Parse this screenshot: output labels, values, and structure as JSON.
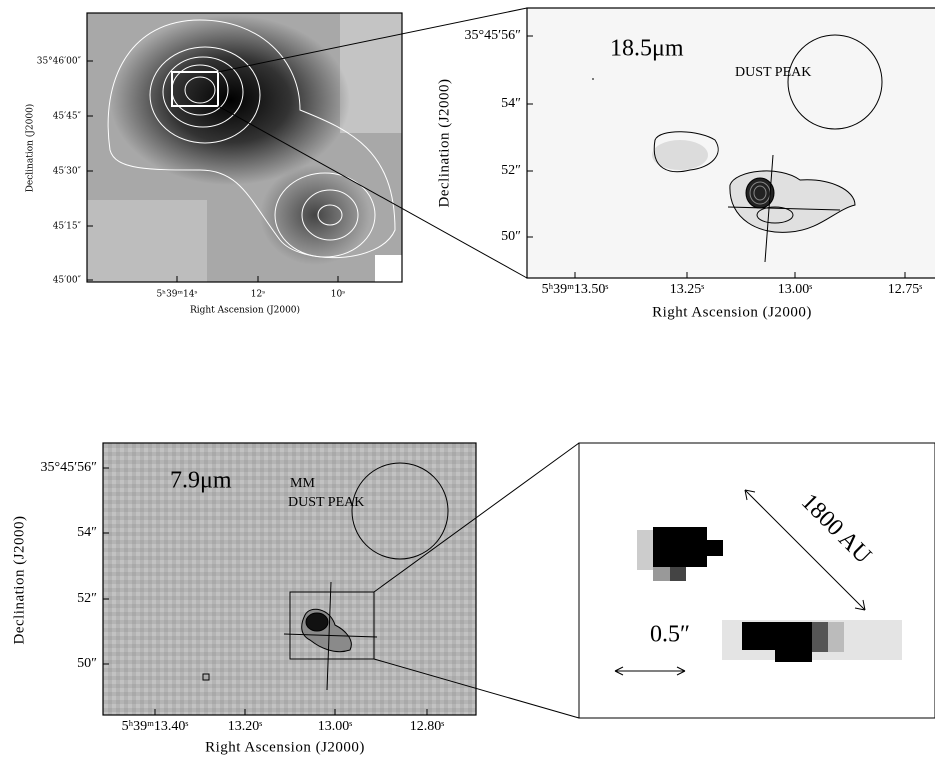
{
  "panels": [
    {
      "x_label": "Right Ascension (J2000)",
      "y_label": "Declination (J2000)",
      "yticks": [
        "35°46′00″",
        "45′45″",
        "45′30″",
        "45′15″",
        "45′00″"
      ],
      "xticks": [
        "5ʰ39ᵐ14ˢ",
        "12ˢ",
        "10ˢ"
      ]
    },
    {
      "x_label": "Right Ascension (J2000)",
      "y_label": "Declination (J2000)",
      "yticks": [
        "35°45′56″",
        "54″",
        "52″",
        "50″"
      ],
      "xticks": [
        "5ʰ39ᵐ13.50ˢ",
        "13.25ˢ",
        "13.00ˢ",
        "12.75ˢ"
      ],
      "annotations": [
        "18.5μm",
        "DUST PEAK"
      ]
    },
    {
      "x_label": "Right Ascension (J2000)",
      "y_label": "Declination (J2000)",
      "yticks": [
        "35°45′56″",
        "54″",
        "52″",
        "50″"
      ],
      "xticks": [
        "5ʰ39ᵐ13.40ˢ",
        "13.20ˢ",
        "13.00ˢ",
        "12.80ˢ"
      ],
      "annotations": [
        "7.9μm",
        "MM",
        "DUST PEAK"
      ]
    },
    {
      "annotations": [
        "1800 AU",
        "0.5″"
      ]
    }
  ]
}
